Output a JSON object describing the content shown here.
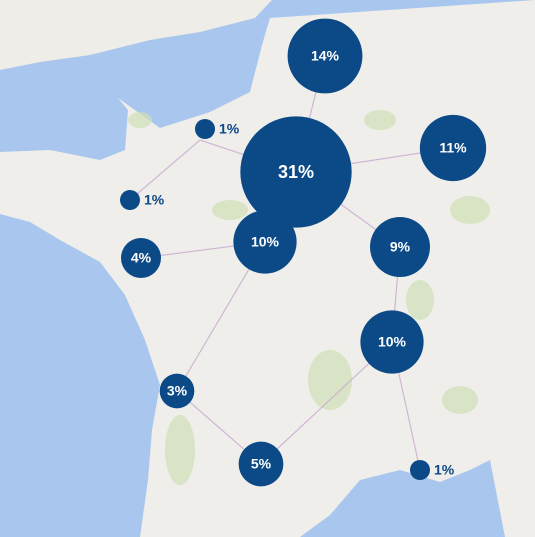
{
  "chart_data": {
    "type": "bubble-map",
    "color": "#0b4a87",
    "values": [
      14,
      1,
      31,
      11,
      1,
      4,
      10,
      9,
      10,
      3,
      5,
      1
    ],
    "value_labels": [
      "14%",
      "1%",
      "31%",
      "11%",
      "1%",
      "4%",
      "10%",
      "9%",
      "10%",
      "3%",
      "5%",
      "1%"
    ]
  }
}
